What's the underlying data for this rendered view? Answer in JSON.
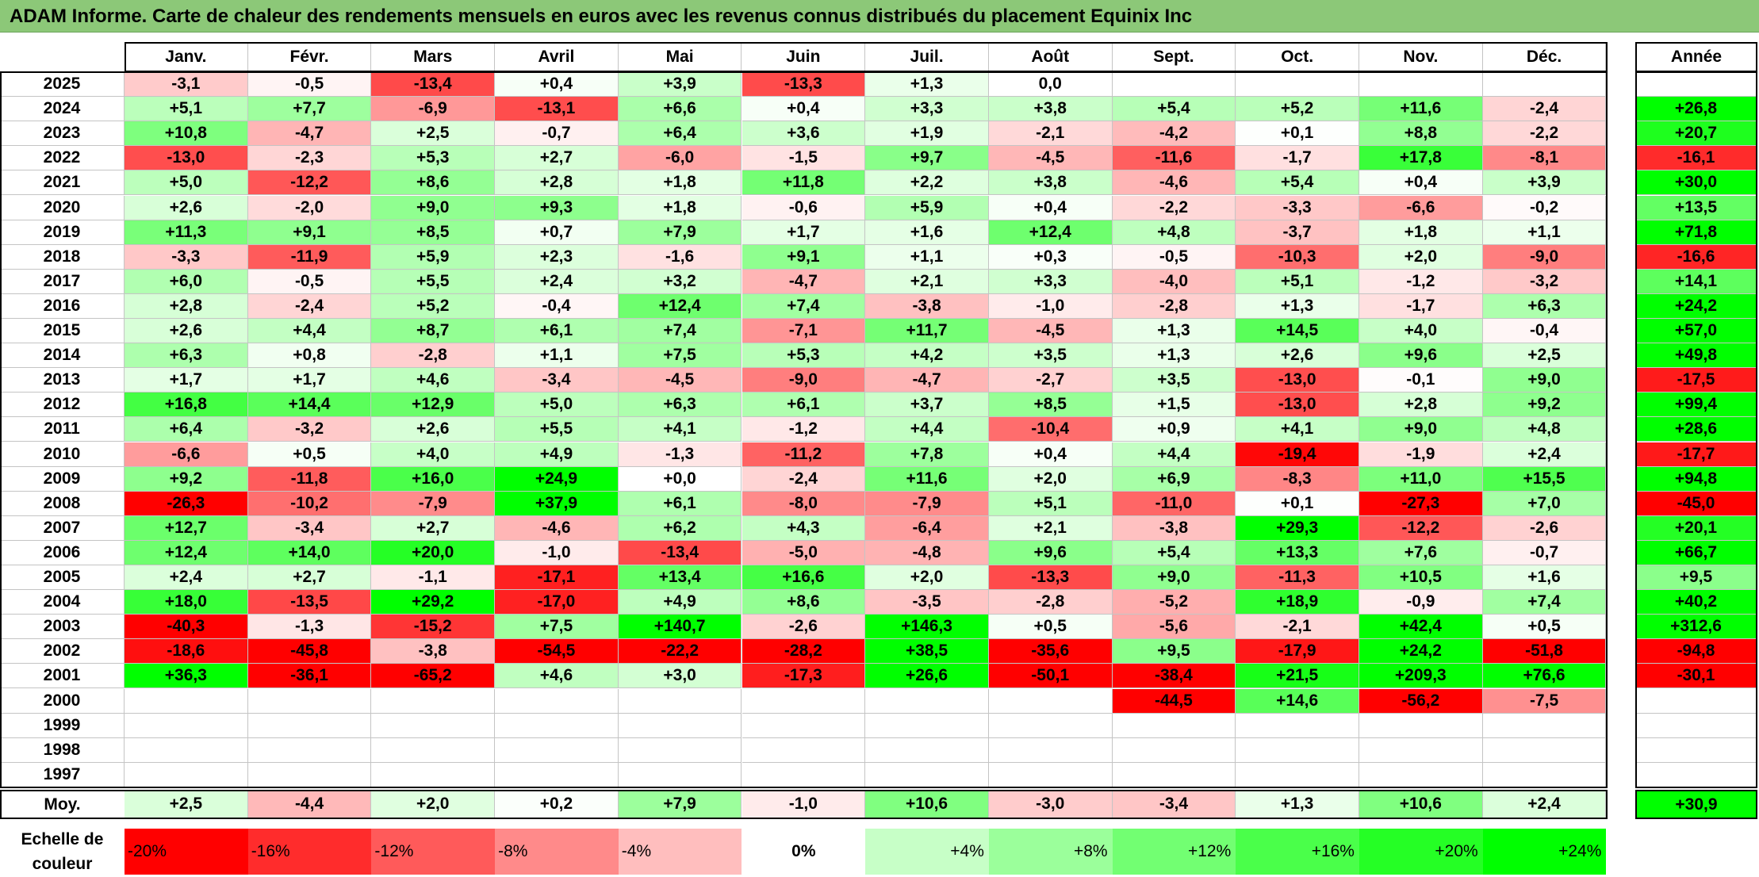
{
  "title": "ADAM Informe. Carte de chaleur des rendements mensuels en euros avec les revenus connus distribués du placement Equinix Inc",
  "chart_data": {
    "type": "heatmap",
    "title": "ADAM Informe. Carte de chaleur des rendements mensuels en euros avec les revenus connus distribués du placement Equinix Inc",
    "columns": [
      "Janv.",
      "Févr.",
      "Mars",
      "Avril",
      "Mai",
      "Juin",
      "Juil.",
      "Août",
      "Sept.",
      "Oct.",
      "Nov.",
      "Déc."
    ],
    "year_column_label": "Année",
    "rows": [
      {
        "label": "2025",
        "values": [
          "-3,1",
          "-0,5",
          "-13,4",
          "+0,4",
          "+3,9",
          "-13,3",
          "+1,3",
          "0,0",
          "",
          "",
          "",
          ""
        ],
        "year": ""
      },
      {
        "label": "2024",
        "values": [
          "+5,1",
          "+7,7",
          "-6,9",
          "-13,1",
          "+6,6",
          "+0,4",
          "+3,3",
          "+3,8",
          "+5,4",
          "+5,2",
          "+11,6",
          "-2,4"
        ],
        "year": "+26,8"
      },
      {
        "label": "2023",
        "values": [
          "+10,8",
          "-4,7",
          "+2,5",
          "-0,7",
          "+6,4",
          "+3,6",
          "+1,9",
          "-2,1",
          "-4,2",
          "+0,1",
          "+8,8",
          "-2,2"
        ],
        "year": "+20,7"
      },
      {
        "label": "2022",
        "values": [
          "-13,0",
          "-2,3",
          "+5,3",
          "+2,7",
          "-6,0",
          "-1,5",
          "+9,7",
          "-4,5",
          "-11,6",
          "-1,7",
          "+17,8",
          "-8,1"
        ],
        "year": "-16,1"
      },
      {
        "label": "2021",
        "values": [
          "+5,0",
          "-12,2",
          "+8,6",
          "+2,8",
          "+1,8",
          "+11,8",
          "+2,2",
          "+3,8",
          "-4,6",
          "+5,4",
          "+0,4",
          "+3,9"
        ],
        "year": "+30,0"
      },
      {
        "label": "2020",
        "values": [
          "+2,6",
          "-2,0",
          "+9,0",
          "+9,3",
          "+1,8",
          "-0,6",
          "+5,9",
          "+0,4",
          "-2,2",
          "-3,3",
          "-6,6",
          "-0,2"
        ],
        "year": "+13,5"
      },
      {
        "label": "2019",
        "values": [
          "+11,3",
          "+9,1",
          "+8,5",
          "+0,7",
          "+7,9",
          "+1,7",
          "+1,6",
          "+12,4",
          "+4,8",
          "-3,7",
          "+1,8",
          "+1,1"
        ],
        "year": "+71,8"
      },
      {
        "label": "2018",
        "values": [
          "-3,3",
          "-11,9",
          "+5,9",
          "+2,3",
          "-1,6",
          "+9,1",
          "+1,1",
          "+0,3",
          "-0,5",
          "-10,3",
          "+2,0",
          "-9,0"
        ],
        "year": "-16,6"
      },
      {
        "label": "2017",
        "values": [
          "+6,0",
          "-0,5",
          "+5,5",
          "+2,4",
          "+3,2",
          "-4,7",
          "+2,1",
          "+3,3",
          "-4,0",
          "+5,1",
          "-1,2",
          "-3,2"
        ],
        "year": "+14,1"
      },
      {
        "label": "2016",
        "values": [
          "+2,8",
          "-2,4",
          "+5,2",
          "-0,4",
          "+12,4",
          "+7,4",
          "-3,8",
          "-1,0",
          "-2,8",
          "+1,3",
          "-1,7",
          "+6,3"
        ],
        "year": "+24,2"
      },
      {
        "label": "2015",
        "values": [
          "+2,6",
          "+4,4",
          "+8,7",
          "+6,1",
          "+7,4",
          "-7,1",
          "+11,7",
          "-4,5",
          "+1,3",
          "+14,5",
          "+4,0",
          "-0,4"
        ],
        "year": "+57,0"
      },
      {
        "label": "2014",
        "values": [
          "+6,3",
          "+0,8",
          "-2,8",
          "+1,1",
          "+7,5",
          "+5,3",
          "+4,2",
          "+3,5",
          "+1,3",
          "+2,6",
          "+9,6",
          "+2,5"
        ],
        "year": "+49,8"
      },
      {
        "label": "2013",
        "values": [
          "+1,7",
          "+1,7",
          "+4,6",
          "-3,4",
          "-4,5",
          "-9,0",
          "-4,7",
          "-2,7",
          "+3,5",
          "-13,0",
          "-0,1",
          "+9,0"
        ],
        "year": "-17,5"
      },
      {
        "label": "2012",
        "values": [
          "+16,8",
          "+14,4",
          "+12,9",
          "+5,0",
          "+6,3",
          "+6,1",
          "+3,7",
          "+8,5",
          "+1,5",
          "-13,0",
          "+2,8",
          "+9,2"
        ],
        "year": "+99,4"
      },
      {
        "label": "2011",
        "values": [
          "+6,4",
          "-3,2",
          "+2,6",
          "+5,5",
          "+4,1",
          "-1,2",
          "+4,4",
          "-10,4",
          "+0,9",
          "+4,1",
          "+9,0",
          "+4,8"
        ],
        "year": "+28,6"
      },
      {
        "label": "2010",
        "values": [
          "-6,6",
          "+0,5",
          "+4,0",
          "+4,9",
          "-1,3",
          "-11,2",
          "+7,8",
          "+0,4",
          "+4,4",
          "-19,4",
          "-1,9",
          "+2,4"
        ],
        "year": "-17,7"
      },
      {
        "label": "2009",
        "values": [
          "+9,2",
          "-11,8",
          "+16,0",
          "+24,9",
          "+0,0",
          "-2,4",
          "+11,6",
          "+2,0",
          "+6,9",
          "-8,3",
          "+11,0",
          "+15,5"
        ],
        "year": "+94,8"
      },
      {
        "label": "2008",
        "values": [
          "-26,3",
          "-10,2",
          "-7,9",
          "+37,9",
          "+6,1",
          "-8,0",
          "-7,9",
          "+5,1",
          "-11,0",
          "+0,1",
          "-27,3",
          "+7,0"
        ],
        "year": "-45,0"
      },
      {
        "label": "2007",
        "values": [
          "+12,7",
          "-3,4",
          "+2,7",
          "-4,6",
          "+6,2",
          "+4,3",
          "-6,4",
          "+2,1",
          "-3,8",
          "+29,3",
          "-12,2",
          "-2,6"
        ],
        "year": "+20,1"
      },
      {
        "label": "2006",
        "values": [
          "+12,4",
          "+14,0",
          "+20,0",
          "-1,0",
          "-13,4",
          "-5,0",
          "-4,8",
          "+9,6",
          "+5,4",
          "+13,3",
          "+7,6",
          "-0,7"
        ],
        "year": "+66,7"
      },
      {
        "label": "2005",
        "values": [
          "+2,4",
          "+2,7",
          "-1,1",
          "-17,1",
          "+13,4",
          "+16,6",
          "+2,0",
          "-13,3",
          "+9,0",
          "-11,3",
          "+10,5",
          "+1,6"
        ],
        "year": "+9,5"
      },
      {
        "label": "2004",
        "values": [
          "+18,0",
          "-13,5",
          "+29,2",
          "-17,0",
          "+4,9",
          "+8,6",
          "-3,5",
          "-2,8",
          "-5,2",
          "+18,9",
          "-0,9",
          "+7,4"
        ],
        "year": "+40,2"
      },
      {
        "label": "2003",
        "values": [
          "-40,3",
          "-1,3",
          "-15,2",
          "+7,5",
          "+140,7",
          "-2,6",
          "+146,3",
          "+0,5",
          "-5,6",
          "-2,1",
          "+42,4",
          "+0,5"
        ],
        "year": "+312,6"
      },
      {
        "label": "2002",
        "values": [
          "-18,6",
          "-45,8",
          "-3,8",
          "-54,5",
          "-22,2",
          "-28,2",
          "+38,5",
          "-35,6",
          "+9,5",
          "-17,9",
          "+24,2",
          "-51,8"
        ],
        "year": "-94,8"
      },
      {
        "label": "2001",
        "values": [
          "+36,3",
          "-36,1",
          "-65,2",
          "+4,6",
          "+3,0",
          "-17,3",
          "+26,6",
          "-50,1",
          "-38,4",
          "+21,5",
          "+209,3",
          "+76,6"
        ],
        "year": "-30,1"
      },
      {
        "label": "2000",
        "values": [
          "",
          "",
          "",
          "",
          "",
          "",
          "",
          "",
          "-44,5",
          "+14,6",
          "-56,2",
          "-7,5"
        ],
        "year": ""
      },
      {
        "label": "1999",
        "values": [
          "",
          "",
          "",
          "",
          "",
          "",
          "",
          "",
          "",
          "",
          "",
          ""
        ],
        "year": ""
      },
      {
        "label": "1998",
        "values": [
          "",
          "",
          "",
          "",
          "",
          "",
          "",
          "",
          "",
          "",
          "",
          ""
        ],
        "year": ""
      },
      {
        "label": "1997",
        "values": [
          "",
          "",
          "",
          "",
          "",
          "",
          "",
          "",
          "",
          "",
          "",
          ""
        ],
        "year": ""
      }
    ],
    "average": {
      "label": "Moy.",
      "values": [
        "+2,5",
        "-4,4",
        "+2,0",
        "+0,2",
        "+7,9",
        "-1,0",
        "+10,6",
        "-3,0",
        "-3,4",
        "+1,3",
        "+10,6",
        "+2,4"
      ],
      "year": "+30,9"
    },
    "color_scale": {
      "label": "Echelle de couleur",
      "stops": [
        "-20%",
        "-16%",
        "-12%",
        "-8%",
        "-4%",
        "0%",
        "+4%",
        "+8%",
        "+12%",
        "+16%",
        "+20%",
        "+24%"
      ],
      "negative_color": "#ff0000",
      "positive_color": "#00ff00",
      "neutral_color": "#ffffff"
    }
  }
}
